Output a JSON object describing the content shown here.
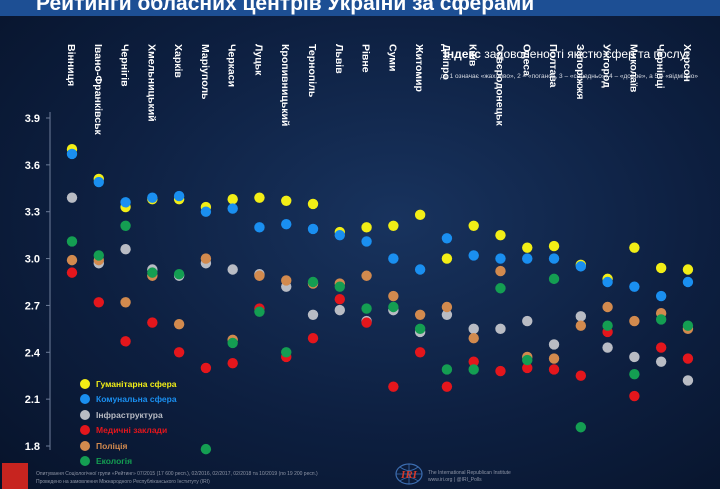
{
  "header": {
    "title": "Рейтинги обласних центрів України за сферами"
  },
  "index": {
    "title_bold": "Індекс",
    "title_rest": " задоволеності якістю сфер та послуг",
    "note": "де 1 означає «жахливо», 2 – «погано», 3 – «середньо», 4 – «добре», а 5 – «відмінно»"
  },
  "legend": {
    "items": [
      {
        "label": "Гуманітарна сфера",
        "color": "#f2ee16"
      },
      {
        "label": "Комунальна сфера",
        "color": "#1a8ff0"
      },
      {
        "label": "Інфраструктура",
        "color": "#b9bcc4"
      },
      {
        "label": "Медичні заклади",
        "color": "#e4161c"
      },
      {
        "label": "Поліція",
        "color": "#d28a4e"
      },
      {
        "label": "Екологія",
        "color": "#149e52"
      }
    ]
  },
  "footer": {
    "source_line1": "Опитування Соціологічної групи «Рейтинг» 07/2015 (17 600 респ.), 02/2016, 02/2017, 02/2018 та 10/2019 (по 19 200 респ.)",
    "source_line2": "Проведено на замовлення Міжнародного Республіканського Інституту (IRI)",
    "iri_logo_text": "IRI",
    "iri_line1": "The International Republican Institute",
    "iri_line2": "www.iri.org | @IRI_Polls"
  },
  "chart_data": {
    "type": "scatter",
    "y_ticks": [
      "3.9",
      "3.6",
      "3.3",
      "3.0",
      "2.7",
      "2.4",
      "2.1",
      "1.8"
    ],
    "ylim": [
      1.8,
      3.9
    ],
    "grid": false,
    "legend_position": "bottom-left",
    "categories": [
      "Вінниця",
      "Івано-Франківськ",
      "Чернігів",
      "Хмельницький",
      "Харків",
      "Маріуполь",
      "Черкаси",
      "Луцьк",
      "Кропивницький",
      "Тернопіль",
      "Львів",
      "Рівне",
      "Суми",
      "Житомир",
      "Дніпро",
      "Київ",
      "Сєвєродонецьк",
      "Одеса",
      "Полтава",
      "Запоріжжя",
      "Ужгород",
      "Миколаїв",
      "Чернівці",
      "Херсон"
    ],
    "series": [
      {
        "name": "Гуманітарна сфера",
        "color": "#f2ee16",
        "values": [
          3.7,
          3.51,
          3.33,
          3.38,
          3.38,
          3.33,
          3.38,
          3.39,
          3.37,
          3.35,
          3.17,
          3.2,
          3.21,
          3.28,
          3.0,
          3.21,
          3.15,
          3.07,
          3.08,
          2.96,
          2.87,
          3.07,
          2.94,
          2.93
        ]
      },
      {
        "name": "Комунальна сфера",
        "color": "#1a8ff0",
        "values": [
          3.67,
          3.49,
          3.36,
          3.39,
          3.4,
          3.3,
          3.32,
          3.2,
          3.22,
          3.19,
          3.15,
          3.11,
          3.0,
          2.93,
          3.13,
          3.02,
          3.0,
          3.0,
          3.0,
          2.95,
          2.85,
          2.82,
          2.76,
          2.85
        ]
      },
      {
        "name": "Інфраструктура",
        "color": "#b9bcc4",
        "values": [
          3.39,
          2.97,
          3.06,
          2.93,
          2.89,
          2.97,
          2.93,
          2.9,
          2.82,
          2.64,
          2.67,
          2.6,
          2.67,
          2.53,
          2.64,
          2.55,
          2.55,
          2.6,
          2.45,
          2.63,
          2.43,
          2.37,
          2.34,
          2.22
        ]
      },
      {
        "name": "Медичні заклади",
        "color": "#e4161c",
        "values": [
          2.91,
          2.72,
          2.47,
          2.59,
          2.4,
          2.3,
          2.33,
          2.68,
          2.37,
          2.49,
          2.74,
          2.59,
          2.18,
          2.4,
          2.18,
          2.34,
          2.28,
          2.3,
          2.29,
          2.25,
          2.53,
          2.12,
          2.43,
          2.36
        ]
      },
      {
        "name": "Поліція",
        "color": "#d28a4e",
        "values": [
          2.99,
          2.99,
          2.72,
          2.89,
          2.58,
          3.0,
          2.48,
          2.89,
          2.86,
          2.84,
          2.84,
          2.89,
          2.76,
          2.64,
          2.69,
          2.49,
          2.92,
          2.37,
          2.36,
          2.57,
          2.69,
          2.6,
          2.65,
          2.55
        ]
      },
      {
        "name": "Екологія",
        "color": "#149e52",
        "values": [
          3.11,
          3.02,
          3.21,
          2.91,
          2.9,
          1.78,
          2.46,
          2.66,
          2.4,
          2.85,
          2.82,
          2.68,
          2.69,
          2.55,
          2.29,
          2.29,
          2.81,
          2.35,
          2.87,
          1.92,
          2.57,
          2.26,
          2.61,
          2.57
        ]
      }
    ]
  }
}
